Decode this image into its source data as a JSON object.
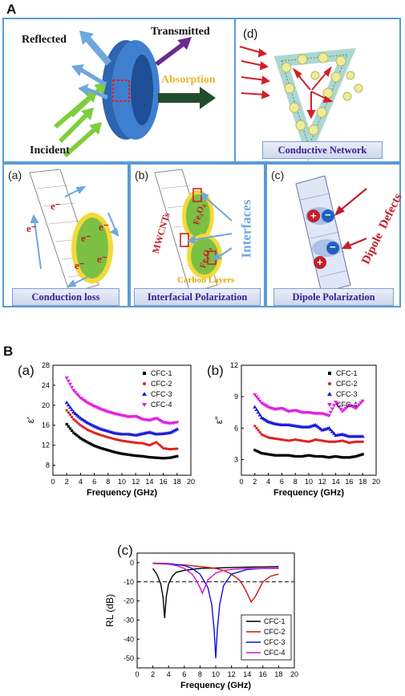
{
  "part_a": {
    "label": "A",
    "top": {
      "reflected": "Reflected",
      "transmitted": "Transmitted",
      "absorption": "Absorption",
      "incident": "Incident",
      "d_label": "(d)",
      "d_caption": "Conductive Network"
    },
    "panel_a": {
      "label": "(a)",
      "electrons": [
        "e⁻",
        "e⁻",
        "e⁻",
        "e⁻",
        "e⁻",
        "e⁻"
      ],
      "caption": "Conduction loss"
    },
    "panel_b": {
      "label": "(b)",
      "mwcnts": "MWCNTs",
      "fe3o4_top": "Fe₃O₄",
      "fe3o4_bottom": "Fe₃O₄",
      "interfaces": "Interfaces",
      "carbon_layers": "Carbon Layers",
      "caption": "Interfacial Polarization"
    },
    "panel_c": {
      "label": "(c)",
      "plus": "+",
      "minus": "−",
      "dipole_defects": "Dipole  Defects",
      "caption": "Dipole Polarization"
    },
    "colors": {
      "frame": "#5b9bd5",
      "caption_text": "#3a1d8f",
      "arrow_red": "#d0202a",
      "label_blue": "#6fa8dc"
    }
  },
  "part_b": {
    "label": "B",
    "plots": {
      "a": {
        "label": "(a)",
        "ylabel": "ε′",
        "xlabel": "Frequency (GHz)"
      },
      "b": {
        "label": "(b)",
        "ylabel": "ε″",
        "xlabel": "Frequency (GHz)"
      },
      "c": {
        "label": "(c)",
        "ylabel": "RL (dB)",
        "xlabel": "Frequency (GHz)"
      }
    }
  },
  "chart_data": [
    {
      "type": "scatter",
      "panel": "(a)",
      "xlabel": "Frequency (GHz)",
      "ylabel": "ε′",
      "xlim": [
        0,
        20
      ],
      "ylim": [
        6,
        28
      ],
      "xticks": [
        0,
        2,
        4,
        6,
        8,
        10,
        12,
        14,
        16,
        18,
        20
      ],
      "yticks": [
        8,
        12,
        16,
        20,
        24,
        28
      ],
      "legend_position": "top-right",
      "series": [
        {
          "name": "CFC-1",
          "color": "#000000",
          "marker": "square",
          "x": [
            2,
            3,
            4,
            5,
            6,
            7,
            8,
            9,
            10,
            11,
            12,
            13,
            14,
            15,
            16,
            17,
            18
          ],
          "values": [
            16.2,
            14.5,
            13.4,
            12.6,
            11.9,
            11.4,
            11.0,
            10.6,
            10.3,
            10.1,
            9.9,
            9.8,
            9.6,
            9.5,
            9.4,
            9.5,
            9.8
          ]
        },
        {
          "name": "CFC-2",
          "color": "#e02020",
          "marker": "circle",
          "x": [
            2,
            3,
            4,
            5,
            6,
            7,
            8,
            9,
            10,
            11,
            12,
            13,
            14,
            15,
            16,
            17,
            18
          ],
          "values": [
            19.0,
            17.2,
            16.0,
            15.1,
            14.5,
            14.0,
            13.6,
            13.2,
            12.9,
            12.7,
            12.5,
            12.4,
            12.0,
            12.6,
            11.4,
            11.2,
            11.3
          ]
        },
        {
          "name": "CFC-3",
          "color": "#1a1ad6",
          "marker": "triangle-up",
          "x": [
            2,
            3,
            4,
            5,
            6,
            7,
            8,
            9,
            10,
            11,
            12,
            13,
            14,
            15,
            16,
            17,
            18
          ],
          "values": [
            20.5,
            18.6,
            17.4,
            16.5,
            15.8,
            15.2,
            14.8,
            14.4,
            14.2,
            14.2,
            14.0,
            14.3,
            14.6,
            14.2,
            14.3,
            14.5,
            15.2
          ]
        },
        {
          "name": "CFC-4",
          "color": "#e020e0",
          "marker": "triangle-down",
          "x": [
            2,
            3,
            4,
            5,
            6,
            7,
            8,
            9,
            10,
            11,
            12,
            13,
            14,
            15,
            16,
            17,
            18
          ],
          "values": [
            25.5,
            23.0,
            21.5,
            20.5,
            19.8,
            19.2,
            18.7,
            18.3,
            18.0,
            17.7,
            17.8,
            17.2,
            17.0,
            17.4,
            16.6,
            16.4,
            16.6
          ]
        }
      ]
    },
    {
      "type": "scatter",
      "panel": "(b)",
      "xlabel": "Frequency (GHz)",
      "ylabel": "ε″",
      "xlim": [
        0,
        20
      ],
      "ylim": [
        1.5,
        12
      ],
      "xticks": [
        0,
        2,
        4,
        6,
        8,
        10,
        12,
        14,
        16,
        18,
        20
      ],
      "yticks": [
        3,
        6,
        9,
        12
      ],
      "legend_position": "top-right",
      "series": [
        {
          "name": "CFC-1",
          "color": "#000000",
          "marker": "square",
          "x": [
            2,
            3,
            4,
            5,
            6,
            7,
            8,
            9,
            10,
            11,
            12,
            13,
            14,
            15,
            16,
            17,
            18
          ],
          "values": [
            3.9,
            3.6,
            3.5,
            3.4,
            3.4,
            3.4,
            3.3,
            3.3,
            3.4,
            3.3,
            3.3,
            3.2,
            3.3,
            3.2,
            3.2,
            3.3,
            3.5
          ]
        },
        {
          "name": "CFC-2",
          "color": "#e02020",
          "marker": "circle",
          "x": [
            2,
            3,
            4,
            5,
            6,
            7,
            8,
            9,
            10,
            11,
            12,
            13,
            14,
            15,
            16,
            17,
            18
          ],
          "values": [
            6.2,
            5.4,
            5.1,
            5.0,
            4.9,
            4.8,
            4.9,
            4.8,
            4.7,
            4.9,
            4.8,
            4.7,
            4.7,
            4.8,
            4.6,
            4.7,
            4.7
          ]
        },
        {
          "name": "CFC-3",
          "color": "#1a1ad6",
          "marker": "triangle-up",
          "x": [
            2,
            3,
            4,
            5,
            6,
            7,
            8,
            9,
            10,
            11,
            12,
            13,
            14,
            15,
            16,
            17,
            18
          ],
          "values": [
            8.0,
            7.0,
            6.6,
            6.4,
            6.3,
            6.3,
            6.2,
            6.1,
            6.1,
            6.3,
            5.8,
            6.0,
            5.3,
            5.4,
            5.2,
            5.2,
            5.2
          ]
        },
        {
          "name": "CFC-4",
          "color": "#e020e0",
          "marker": "triangle-down",
          "x": [
            2,
            3,
            4,
            5,
            6,
            7,
            8,
            9,
            10,
            11,
            12,
            13,
            14,
            15,
            16,
            17,
            18
          ],
          "values": [
            9.2,
            8.4,
            8.0,
            7.8,
            7.9,
            7.6,
            7.7,
            7.5,
            7.5,
            7.4,
            7.4,
            7.2,
            8.5,
            7.6,
            8.2,
            7.9,
            8.6
          ]
        }
      ]
    },
    {
      "type": "line",
      "panel": "(c)",
      "xlabel": "Frequency (GHz)",
      "ylabel": "RL (dB)",
      "xlim": [
        0,
        20
      ],
      "ylim": [
        -55,
        5
      ],
      "xticks": [
        0,
        2,
        4,
        6,
        8,
        10,
        12,
        14,
        16,
        18,
        20
      ],
      "yticks": [
        0,
        -10,
        -20,
        -30,
        -40,
        -50
      ],
      "reference_line": -10,
      "legend_position": "bottom-right",
      "series": [
        {
          "name": "CFC-1",
          "color": "#000000",
          "x": [
            2,
            2.5,
            3,
            3.3,
            3.5,
            3.7,
            4,
            4.5,
            5,
            6,
            7,
            8,
            10,
            12,
            14,
            16,
            18
          ],
          "values": [
            -3,
            -6,
            -11,
            -18,
            -29,
            -18,
            -11,
            -7,
            -5,
            -4,
            -3.5,
            -3,
            -2.8,
            -2.5,
            -2.3,
            -2.2,
            -2
          ]
        },
        {
          "name": "CFC-2",
          "color": "#d01010",
          "x": [
            2,
            4,
            6,
            8,
            10,
            11,
            12,
            13,
            13.5,
            14,
            14.5,
            15,
            15.5,
            16,
            17,
            18
          ],
          "values": [
            -0.5,
            -0.8,
            -1.2,
            -2,
            -3,
            -4,
            -6,
            -9,
            -12,
            -16,
            -20.5,
            -18,
            -14,
            -10,
            -7,
            -6
          ]
        },
        {
          "name": "CFC-3",
          "color": "#1010d0",
          "x": [
            2,
            4,
            6,
            7,
            8,
            9,
            9.5,
            9.8,
            10,
            10.2,
            10.5,
            11,
            12,
            14,
            16,
            18
          ],
          "values": [
            -0.2,
            -0.5,
            -1.5,
            -3,
            -6,
            -13,
            -22,
            -35,
            -50,
            -35,
            -22,
            -12,
            -6,
            -3.5,
            -3,
            -2.8
          ]
        },
        {
          "name": "CFC-4",
          "color": "#d010d0",
          "x": [
            2,
            3,
            4,
            5,
            6,
            7,
            7.5,
            8,
            8.3,
            8.7,
            9,
            10,
            11,
            12,
            14,
            16,
            18
          ],
          "values": [
            -0.3,
            -0.5,
            -0.8,
            -1.5,
            -3,
            -6,
            -9,
            -13,
            -16,
            -12,
            -9,
            -5.5,
            -4,
            -3.5,
            -3,
            -3,
            -3
          ]
        }
      ]
    }
  ]
}
